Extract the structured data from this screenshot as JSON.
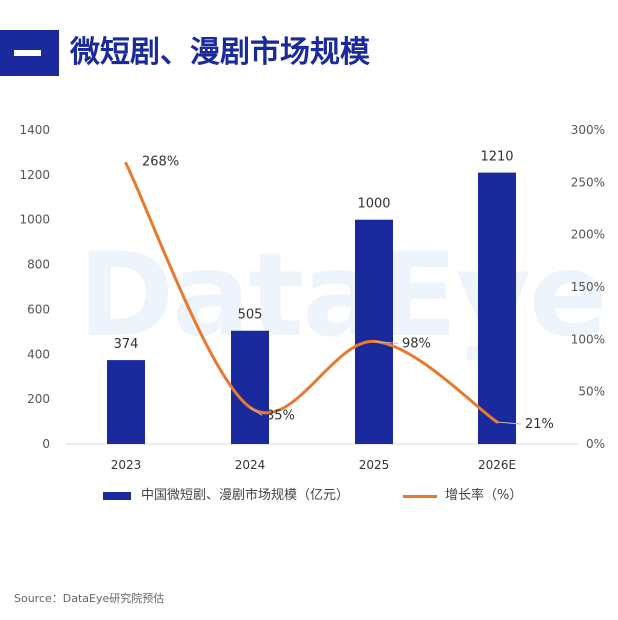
{
  "title": "微短剧、漫剧市场规模",
  "watermark": "DataEye",
  "source": "Source：DataEye研究院预估",
  "legend": {
    "bar_label": "中国微短剧、漫剧市场规模（亿元）",
    "line_label": "增长率（%）"
  },
  "colors": {
    "bar": "#1a2a9c",
    "line": "#e8792f",
    "header": "#1a2a9c"
  },
  "chart_data": {
    "type": "bar",
    "categories": [
      "2023",
      "2024",
      "2025",
      "2026E"
    ],
    "series": [
      {
        "name": "中国微短剧、漫剧市场规模（亿元）",
        "type": "bar",
        "axis": "left",
        "values": [
          374,
          505,
          1000,
          1210
        ],
        "labels": [
          "374",
          "505",
          "1000",
          "1210"
        ]
      },
      {
        "name": "增长率（%）",
        "type": "line",
        "axis": "right",
        "values": [
          268,
          35,
          98,
          21
        ],
        "labels": [
          "268%",
          "35%",
          "98%",
          "21%"
        ]
      }
    ],
    "y_left": {
      "min": 0,
      "max": 1400,
      "ticks": [
        "0",
        "200",
        "400",
        "600",
        "800",
        "1000",
        "1200",
        "1400"
      ]
    },
    "y_right": {
      "min": 0,
      "max": 300,
      "ticks": [
        "0%",
        "50%",
        "100%",
        "150%",
        "200%",
        "250%",
        "300%"
      ]
    },
    "legend_position": "bottom",
    "grid": false
  }
}
